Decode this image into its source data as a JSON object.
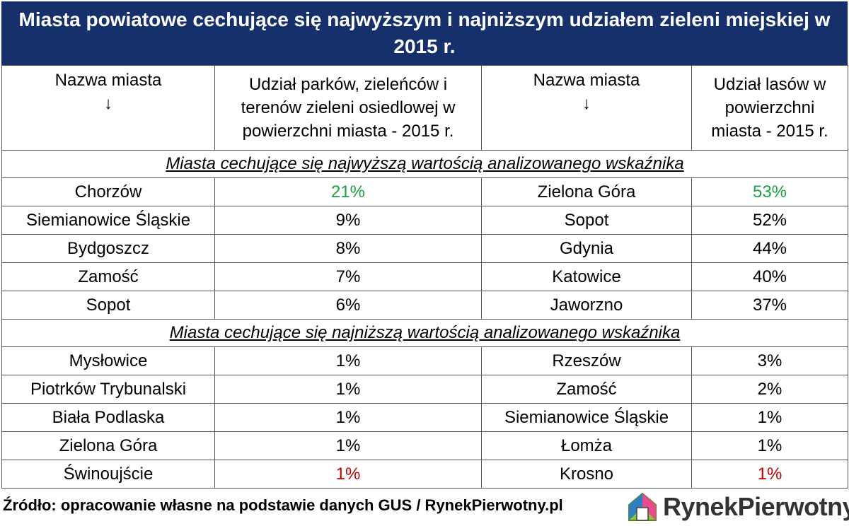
{
  "title": "Miasta powiatowe cechujące się najwyższym i najniższym udziałem zieleni miejskiej w 2015 r.",
  "headers": {
    "col1": "Nazwa miasta",
    "col1_arrow": "↓",
    "col2": "Udział parków, zieleńców i terenów zieleni osiedlowej w powierzchni miasta - 2015 r.",
    "col3": "Nazwa miasta",
    "col3_arrow": "↓",
    "col4": "Udział lasów w powierzchni miasta - 2015 r."
  },
  "section_high": "Miasta cechujące się najwyższą wartością analizowanego wskaźnika",
  "section_low": "Miasta cechujące się najniższą wartością analizowanego wskaźnika",
  "high_rows": [
    {
      "city1": "Chorzów",
      "val1": "21%",
      "city2": "Zielona Góra",
      "val2": "53%"
    },
    {
      "city1": "Siemianowice Śląskie",
      "val1": "9%",
      "city2": "Sopot",
      "val2": "52%"
    },
    {
      "city1": "Bydgoszcz",
      "val1": "8%",
      "city2": "Gdynia",
      "val2": "44%"
    },
    {
      "city1": "Zamość",
      "val1": "7%",
      "city2": "Katowice",
      "val2": "40%"
    },
    {
      "city1": "Sopot",
      "val1": "6%",
      "city2": "Jaworzno",
      "val2": "37%"
    }
  ],
  "low_rows": [
    {
      "city1": "Mysłowice",
      "val1": "1%",
      "city2": "Rzeszów",
      "val2": "3%"
    },
    {
      "city1": "Piotrków Trybunalski",
      "val1": "1%",
      "city2": "Zamość",
      "val2": "2%"
    },
    {
      "city1": "Biała Podlaska",
      "val1": "1%",
      "city2": "Siemianowice Śląskie",
      "val2": "1%"
    },
    {
      "city1": "Zielona Góra",
      "val1": "1%",
      "city2": "Łomża",
      "val2": "1%"
    },
    {
      "city1": "Świnoujście",
      "val1": "1%",
      "city2": "Krosno",
      "val2": "1%"
    }
  ],
  "colors": {
    "title_bg": "#16306b",
    "highlight_green": "#1aa342",
    "highlight_red": "#c00000"
  },
  "footer": "Źródło: opracowanie własne na podstawie danych GUS / RynekPierwotny.pl",
  "logo": {
    "text_a": "Rynek",
    "text_b": "Pierwotny",
    "icon": "house-logo-icon"
  }
}
